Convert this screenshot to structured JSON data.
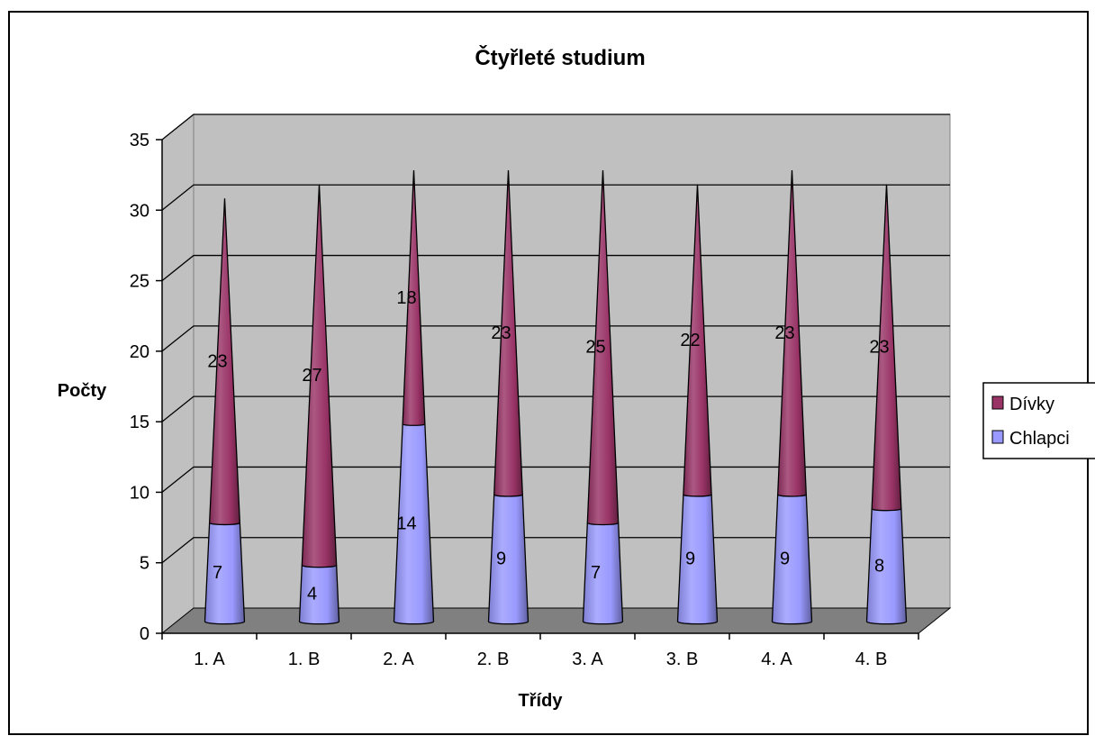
{
  "chart_data": {
    "type": "bar",
    "variant": "3d-stacked-cone",
    "title": "Čtyřleté studium",
    "xlabel": "Třídy",
    "ylabel": "Počty",
    "categories": [
      "1. A",
      "1. B",
      "2. A",
      "2. B",
      "3. A",
      "3. B",
      "4. A",
      "4. B"
    ],
    "series": [
      {
        "name": "Chlapci",
        "values": [
          7,
          4,
          14,
          9,
          7,
          9,
          9,
          8
        ],
        "color": "#9999ff"
      },
      {
        "name": "Dívky",
        "values": [
          23,
          27,
          18,
          23,
          25,
          22,
          23,
          23
        ],
        "color": "#993366"
      }
    ],
    "ylim": [
      0,
      35
    ],
    "yticks": [
      0,
      5,
      10,
      15,
      20,
      25,
      30,
      35
    ],
    "grid": true,
    "legend_position": "right",
    "wall_color": "#c0c0c0",
    "floor_color": "#808080"
  }
}
